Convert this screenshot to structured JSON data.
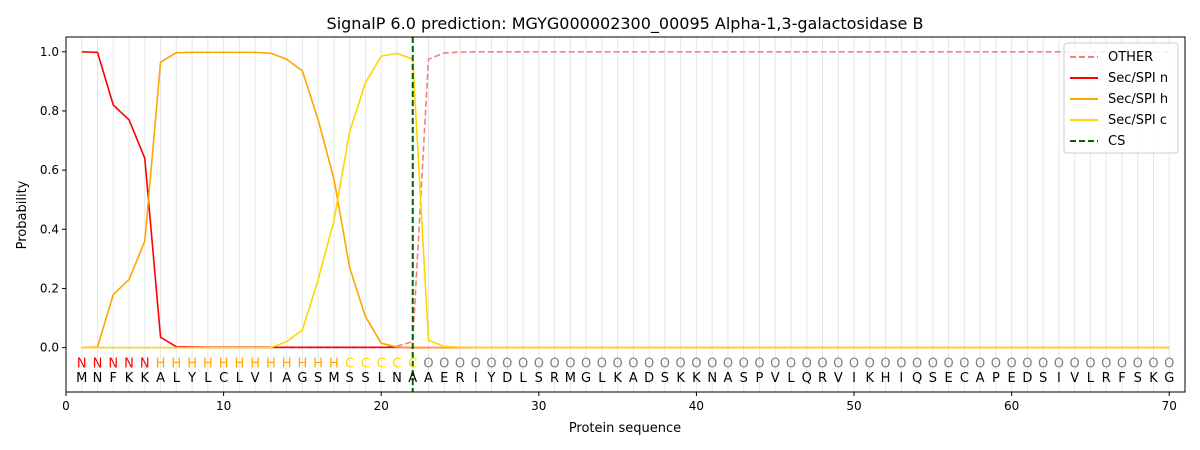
{
  "chart_data": {
    "type": "line",
    "title": "SignalP 6.0 prediction: MGYG000002300_00095 Alpha-1,3-galactosidase B",
    "xlabel": "Protein sequence",
    "ylabel": "Probability",
    "xlim": [
      0,
      71
    ],
    "ylim": [
      -0.15,
      1.05
    ],
    "xticks": [
      0,
      10,
      20,
      30,
      40,
      50,
      60,
      70
    ],
    "yticks": [
      0.0,
      0.2,
      0.4,
      0.6,
      0.8,
      1.0
    ],
    "xtick_labels": [
      "0",
      "10",
      "20",
      "30",
      "40",
      "50",
      "60",
      "70"
    ],
    "ytick_labels": [
      "0.0",
      "0.2",
      "0.4",
      "0.6",
      "0.8",
      "1.0"
    ],
    "sequence": [
      "M",
      "N",
      "F",
      "K",
      "K",
      "A",
      "L",
      "Y",
      "L",
      "C",
      "L",
      "V",
      "I",
      "A",
      "G",
      "S",
      "M",
      "S",
      "S",
      "L",
      "N",
      "A",
      "A",
      "E",
      "R",
      "I",
      "Y",
      "D",
      "L",
      "S",
      "R",
      "M",
      "G",
      "L",
      "K",
      "A",
      "D",
      "S",
      "K",
      "K",
      "N",
      "A",
      "S",
      "P",
      "V",
      "L",
      "Q",
      "R",
      "V",
      "I",
      "K",
      "H",
      "I",
      "Q",
      "S",
      "E",
      "C",
      "A",
      "P",
      "E",
      "D",
      "S",
      "I",
      "V",
      "L",
      "R",
      "F",
      "S",
      "K",
      "G"
    ],
    "region_labels": [
      "N",
      "N",
      "N",
      "N",
      "N",
      "H",
      "H",
      "H",
      "H",
      "H",
      "H",
      "H",
      "H",
      "H",
      "H",
      "H",
      "H",
      "C",
      "C",
      "C",
      "C",
      "C",
      "O",
      "O",
      "O",
      "O",
      "O",
      "O",
      "O",
      "O",
      "O",
      "O",
      "O",
      "O",
      "O",
      "O",
      "O",
      "O",
      "O",
      "O",
      "O",
      "O",
      "O",
      "O",
      "O",
      "O",
      "O",
      "O",
      "O",
      "O",
      "O",
      "O",
      "O",
      "O",
      "O",
      "O",
      "O",
      "O",
      "O",
      "O",
      "O",
      "O",
      "O",
      "O",
      "O",
      "O",
      "O",
      "O",
      "O",
      "O"
    ],
    "region_colors": {
      "N": "#ff0000",
      "H": "#ffa500",
      "C": "#ffd700",
      "O": "#808080"
    },
    "series": [
      {
        "name": "OTHER",
        "color": "#f08080",
        "dash": "dashed",
        "values": [
          0,
          0,
          0,
          0,
          0,
          0,
          0,
          0,
          0,
          0,
          0,
          0,
          0,
          0,
          0,
          0,
          0,
          0,
          0,
          0,
          0.005,
          0.02,
          0.975,
          0.996,
          0.999,
          1,
          1,
          1,
          1,
          1,
          1,
          1,
          1,
          1,
          1,
          1,
          1,
          1,
          1,
          1,
          1,
          1,
          1,
          1,
          1,
          1,
          1,
          1,
          1,
          1,
          1,
          1,
          1,
          1,
          1,
          1,
          1,
          1,
          1,
          1,
          1,
          1,
          1,
          1,
          1,
          1,
          1,
          1,
          1,
          1
        ]
      },
      {
        "name": "Sec/SPI n",
        "color": "#ff0000",
        "dash": "solid",
        "values": [
          1.0,
          0.998,
          0.82,
          0.77,
          0.64,
          0.035,
          0.003,
          0.002,
          0.001,
          0.001,
          0.001,
          0.001,
          0.001,
          0.001,
          0.001,
          0.001,
          0.001,
          0.001,
          0.001,
          0.001,
          0.001,
          0,
          0,
          0,
          0,
          0,
          0,
          0,
          0,
          0,
          0,
          0,
          0,
          0,
          0,
          0,
          0,
          0,
          0,
          0,
          0,
          0,
          0,
          0,
          0,
          0,
          0,
          0,
          0,
          0,
          0,
          0,
          0,
          0,
          0,
          0,
          0,
          0,
          0,
          0,
          0,
          0,
          0,
          0,
          0,
          0,
          0,
          0,
          0,
          0
        ]
      },
      {
        "name": "Sec/SPI h",
        "color": "#ffa500",
        "dash": "solid",
        "values": [
          0,
          0.002,
          0.18,
          0.23,
          0.36,
          0.965,
          0.997,
          0.998,
          0.998,
          0.998,
          0.998,
          0.998,
          0.995,
          0.975,
          0.935,
          0.77,
          0.57,
          0.27,
          0.105,
          0.015,
          0.002,
          0.001,
          0,
          0,
          0,
          0,
          0,
          0,
          0,
          0,
          0,
          0,
          0,
          0,
          0,
          0,
          0,
          0,
          0,
          0,
          0,
          0,
          0,
          0,
          0,
          0,
          0,
          0,
          0,
          0,
          0,
          0,
          0,
          0,
          0,
          0,
          0,
          0,
          0,
          0,
          0,
          0,
          0,
          0,
          0,
          0,
          0,
          0,
          0,
          0
        ]
      },
      {
        "name": "Sec/SPI c",
        "color": "#ffd700",
        "dash": "solid",
        "values": [
          0,
          0,
          0,
          0,
          0,
          0,
          0,
          0,
          0,
          0,
          0,
          0,
          0,
          0.02,
          0.06,
          0.23,
          0.43,
          0.73,
          0.895,
          0.985,
          0.995,
          0.975,
          0.025,
          0.004,
          0.001,
          0,
          0,
          0,
          0,
          0,
          0,
          0,
          0,
          0,
          0,
          0,
          0,
          0,
          0,
          0,
          0,
          0,
          0,
          0,
          0,
          0,
          0,
          0,
          0,
          0,
          0,
          0,
          0,
          0,
          0,
          0,
          0,
          0,
          0,
          0,
          0,
          0,
          0,
          0,
          0,
          0,
          0,
          0,
          0,
          0
        ]
      },
      {
        "name": "CS",
        "color": "#006400",
        "dash": "dashed",
        "vline_x": 22
      }
    ],
    "legend": "top-right",
    "grid": "vertical lines at each residue"
  }
}
